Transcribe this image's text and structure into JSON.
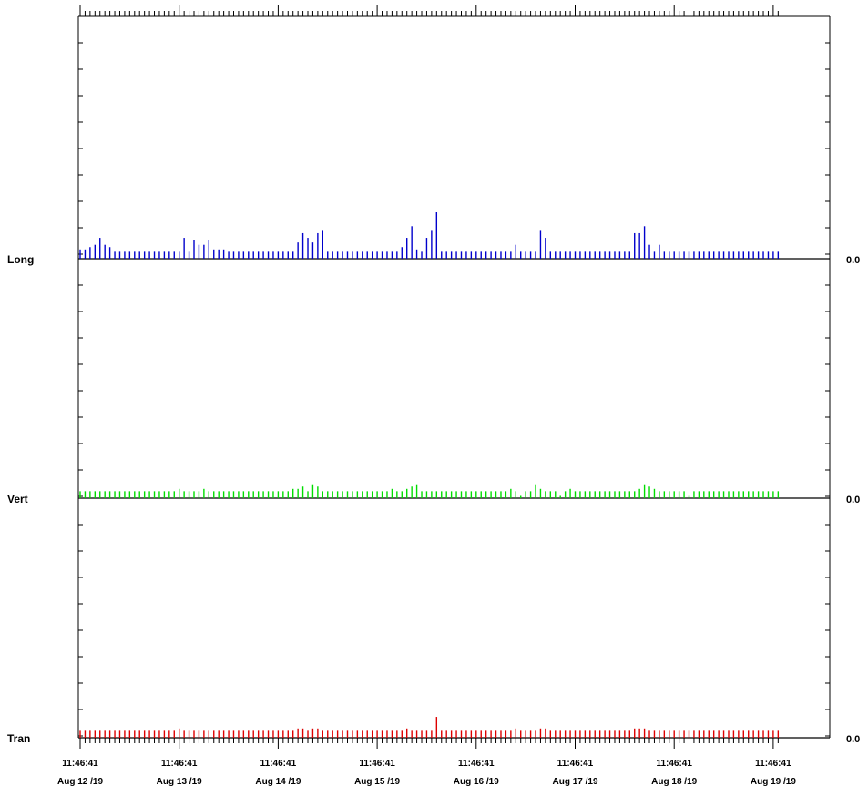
{
  "chart_data": {
    "type": "bar",
    "x_ticks": [
      {
        "time": "11:46:41",
        "date": "Aug 12 /19"
      },
      {
        "time": "11:46:41",
        "date": "Aug 13 /19"
      },
      {
        "time": "11:46:41",
        "date": "Aug 14 /19"
      },
      {
        "time": "11:46:41",
        "date": "Aug 15 /19"
      },
      {
        "time": "11:46:41",
        "date": "Aug 16 /19"
      },
      {
        "time": "11:46:41",
        "date": "Aug 17 /19"
      },
      {
        "time": "11:46:41",
        "date": "Aug 18 /19"
      },
      {
        "time": "11:46:41",
        "date": "Aug 19 /19"
      }
    ],
    "baseline_value": "0.0",
    "ylim": [
      0,
      10
    ],
    "samples_per_day": 20,
    "grid": false,
    "series": [
      {
        "name": "Long",
        "color": "#0000cc",
        "values": [
          0.4,
          0.4,
          0.5,
          0.6,
          0.9,
          0.6,
          0.5,
          0.3,
          0.3,
          0.3,
          0.3,
          0.3,
          0.3,
          0.3,
          0.3,
          0.3,
          0.3,
          0.3,
          0.3,
          0.3,
          0.3,
          0.9,
          0.3,
          0.8,
          0.6,
          0.6,
          0.8,
          0.4,
          0.4,
          0.4,
          0.3,
          0.3,
          0.3,
          0.3,
          0.3,
          0.3,
          0.3,
          0.3,
          0.3,
          0.3,
          0.3,
          0.3,
          0.3,
          0.3,
          0.7,
          1.1,
          0.9,
          0.7,
          1.1,
          1.2,
          0.3,
          0.3,
          0.3,
          0.3,
          0.3,
          0.3,
          0.3,
          0.3,
          0.3,
          0.3,
          0.3,
          0.3,
          0.3,
          0.3,
          0.3,
          0.5,
          0.9,
          1.4,
          0.4,
          0.3,
          0.9,
          1.2,
          2.0,
          0.3,
          0.3,
          0.3,
          0.3,
          0.3,
          0.3,
          0.3,
          0.3,
          0.3,
          0.3,
          0.3,
          0.3,
          0.3,
          0.3,
          0.3,
          0.6,
          0.3,
          0.3,
          0.3,
          0.3,
          1.2,
          0.9,
          0.3,
          0.3,
          0.3,
          0.3,
          0.3,
          0.3,
          0.3,
          0.3,
          0.3,
          0.3,
          0.3,
          0.3,
          0.3,
          0.3,
          0.3,
          0.3,
          0.3,
          1.1,
          1.1,
          1.4,
          0.6,
          0.3,
          0.6,
          0.3,
          0.3,
          0.3,
          0.3,
          0.3,
          0.3,
          0.3,
          0.3,
          0.3,
          0.3,
          0.3,
          0.3,
          0.3,
          0.3,
          0.3,
          0.3,
          0.3,
          0.3,
          0.3,
          0.3,
          0.3,
          0.3,
          0.3,
          0.3,
          0.3,
          0.3,
          0.3,
          0.3,
          0.3,
          0.3,
          0.3,
          0.3,
          0.3,
          0.3,
          0.3,
          0.3,
          0.3,
          1.1,
          1.0,
          1.1,
          1.2,
          1.5,
          0.3,
          0.4
        ]
      },
      {
        "name": "Vert",
        "color": "#00dd00",
        "values": [
          0.3,
          0.3,
          0.3,
          0.3,
          0.3,
          0.3,
          0.3,
          0.3,
          0.3,
          0.3,
          0.3,
          0.3,
          0.3,
          0.3,
          0.3,
          0.3,
          0.3,
          0.3,
          0.3,
          0.3,
          0.4,
          0.3,
          0.3,
          0.3,
          0.3,
          0.4,
          0.3,
          0.3,
          0.3,
          0.3,
          0.3,
          0.3,
          0.3,
          0.3,
          0.3,
          0.3,
          0.3,
          0.3,
          0.3,
          0.3,
          0.3,
          0.3,
          0.3,
          0.4,
          0.4,
          0.5,
          0.3,
          0.6,
          0.5,
          0.3,
          0.3,
          0.3,
          0.3,
          0.3,
          0.3,
          0.3,
          0.3,
          0.3,
          0.3,
          0.3,
          0.3,
          0.3,
          0.3,
          0.4,
          0.3,
          0.3,
          0.4,
          0.5,
          0.6,
          0.3,
          0.3,
          0.3,
          0.3,
          0.3,
          0.3,
          0.3,
          0.3,
          0.3,
          0.3,
          0.3,
          0.3,
          0.3,
          0.3,
          0.3,
          0.3,
          0.3,
          0.3,
          0.4,
          0.3,
          0.1,
          0.3,
          0.3,
          0.6,
          0.4,
          0.3,
          0.3,
          0.3,
          0.1,
          0.3,
          0.4,
          0.3,
          0.3,
          0.3,
          0.3,
          0.3,
          0.3,
          0.3,
          0.3,
          0.3,
          0.3,
          0.3,
          0.3,
          0.3,
          0.4,
          0.6,
          0.5,
          0.4,
          0.3,
          0.3,
          0.3,
          0.3,
          0.3,
          0.3,
          0.1,
          0.3,
          0.3,
          0.3,
          0.3,
          0.3,
          0.3,
          0.3,
          0.3,
          0.3,
          0.3,
          0.3,
          0.3,
          0.3,
          0.3,
          0.3,
          0.3,
          0.3,
          0.3,
          0.3,
          0.3,
          0.3,
          0.3,
          0.3,
          0.3,
          0.3,
          0.3,
          0.3,
          0.3,
          0.3,
          0.3,
          0.3,
          0.3,
          0.4,
          0.5,
          0.4,
          0.4,
          0.6,
          0.3,
          0.1
        ]
      },
      {
        "name": "Tran",
        "color": "#dd0000",
        "values": [
          0.3,
          0.3,
          0.3,
          0.3,
          0.3,
          0.3,
          0.3,
          0.3,
          0.3,
          0.3,
          0.3,
          0.3,
          0.3,
          0.3,
          0.3,
          0.3,
          0.3,
          0.3,
          0.3,
          0.3,
          0.4,
          0.3,
          0.3,
          0.3,
          0.3,
          0.3,
          0.3,
          0.3,
          0.3,
          0.3,
          0.3,
          0.3,
          0.3,
          0.3,
          0.3,
          0.3,
          0.3,
          0.3,
          0.3,
          0.3,
          0.3,
          0.3,
          0.3,
          0.3,
          0.4,
          0.4,
          0.3,
          0.4,
          0.4,
          0.3,
          0.3,
          0.3,
          0.3,
          0.3,
          0.3,
          0.3,
          0.3,
          0.3,
          0.3,
          0.3,
          0.3,
          0.3,
          0.3,
          0.3,
          0.3,
          0.3,
          0.4,
          0.3,
          0.3,
          0.3,
          0.3,
          0.3,
          0.9,
          0.3,
          0.3,
          0.3,
          0.3,
          0.3,
          0.3,
          0.3,
          0.3,
          0.3,
          0.3,
          0.3,
          0.3,
          0.3,
          0.3,
          0.3,
          0.4,
          0.3,
          0.3,
          0.3,
          0.3,
          0.4,
          0.4,
          0.3,
          0.3,
          0.3,
          0.3,
          0.3,
          0.3,
          0.3,
          0.3,
          0.3,
          0.3,
          0.3,
          0.3,
          0.3,
          0.3,
          0.3,
          0.3,
          0.3,
          0.4,
          0.4,
          0.4,
          0.3,
          0.3,
          0.3,
          0.3,
          0.3,
          0.3,
          0.3,
          0.3,
          0.3,
          0.3,
          0.3,
          0.3,
          0.3,
          0.3,
          0.3,
          0.3,
          0.3,
          0.3,
          0.3,
          0.3,
          0.3,
          0.3,
          0.3,
          0.3,
          0.3,
          0.3,
          0.3,
          0.3,
          0.3,
          0.3,
          0.3,
          0.3,
          0.3,
          0.3,
          0.3,
          0.3,
          0.3,
          0.3,
          0.3,
          0.3,
          0.5,
          0.4,
          0.4,
          0.6,
          0.4,
          0.3,
          0.3
        ]
      }
    ]
  }
}
